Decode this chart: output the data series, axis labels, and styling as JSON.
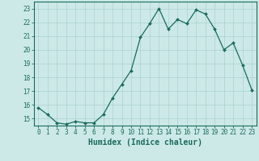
{
  "x": [
    0,
    1,
    2,
    3,
    4,
    5,
    6,
    7,
    8,
    9,
    10,
    11,
    12,
    13,
    14,
    15,
    16,
    17,
    18,
    19,
    20,
    21,
    22,
    23
  ],
  "y": [
    15.8,
    15.3,
    14.7,
    14.6,
    14.8,
    14.7,
    14.7,
    15.3,
    16.5,
    17.5,
    18.5,
    20.9,
    21.9,
    23.0,
    21.5,
    22.2,
    21.9,
    22.9,
    22.6,
    21.5,
    20.0,
    20.5,
    18.9,
    17.1
  ],
  "line_color": "#1a6b5a",
  "marker": "D",
  "marker_size": 2,
  "bg_color": "#cce9e7",
  "grid_color": "#b0d5d3",
  "xlabel": "Humidex (Indice chaleur)",
  "ylabel": "",
  "ylim": [
    14.5,
    23.5
  ],
  "xlim": [
    -0.5,
    23.5
  ],
  "yticks": [
    15,
    16,
    17,
    18,
    19,
    20,
    21,
    22,
    23
  ],
  "xticks": [
    0,
    1,
    2,
    3,
    4,
    5,
    6,
    7,
    8,
    9,
    10,
    11,
    12,
    13,
    14,
    15,
    16,
    17,
    18,
    19,
    20,
    21,
    22,
    23
  ],
  "tick_color": "#1a6b5a",
  "label_fontsize": 5.5,
  "axis_label_fontsize": 7
}
